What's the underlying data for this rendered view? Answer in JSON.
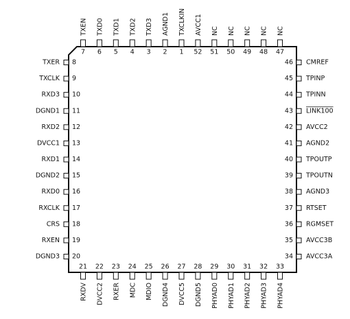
{
  "pins": {
    "top": [
      {
        "number": 7,
        "name": "TXEN"
      },
      {
        "number": 6,
        "name": "TXD0"
      },
      {
        "number": 5,
        "name": "TXD1"
      },
      {
        "number": 4,
        "name": "TXD2"
      },
      {
        "number": 3,
        "name": "TXD3"
      },
      {
        "number": 2,
        "name": "AGND1"
      },
      {
        "number": 1,
        "name": "TXCLKIN"
      },
      {
        "number": 52,
        "name": "AVCC1"
      },
      {
        "number": 51,
        "name": "NC"
      },
      {
        "number": 50,
        "name": "NC"
      },
      {
        "number": 49,
        "name": "NC"
      },
      {
        "number": 48,
        "name": "NC"
      },
      {
        "number": 47,
        "name": "NC"
      }
    ],
    "left": [
      {
        "number": 8,
        "name": "TXER"
      },
      {
        "number": 9,
        "name": "TXCLK"
      },
      {
        "number": 10,
        "name": "RXD3"
      },
      {
        "number": 11,
        "name": "DGND1"
      },
      {
        "number": 12,
        "name": "RXD2"
      },
      {
        "number": 13,
        "name": "DVCC1"
      },
      {
        "number": 14,
        "name": "RXD1"
      },
      {
        "number": 15,
        "name": "DGND2"
      },
      {
        "number": 16,
        "name": "RXD0"
      },
      {
        "number": 17,
        "name": "RXCLK"
      },
      {
        "number": 18,
        "name": "CRS"
      },
      {
        "number": 19,
        "name": "RXEN"
      },
      {
        "number": 20,
        "name": "DGND3"
      }
    ],
    "right": [
      {
        "number": 46,
        "name": "CMREF"
      },
      {
        "number": 45,
        "name": "TPINP"
      },
      {
        "number": 44,
        "name": "TPINN"
      },
      {
        "number": 43,
        "name": "LINK100"
      },
      {
        "number": 42,
        "name": "AVCC2"
      },
      {
        "number": 41,
        "name": "AGND2"
      },
      {
        "number": 40,
        "name": "TPOUTP"
      },
      {
        "number": 39,
        "name": "TPOUTN"
      },
      {
        "number": 38,
        "name": "AGND3"
      },
      {
        "number": 37,
        "name": "RTSET"
      },
      {
        "number": 36,
        "name": "RGMSET"
      },
      {
        "number": 35,
        "name": "AVCC3B"
      },
      {
        "number": 34,
        "name": "AVCC3A"
      }
    ],
    "bottom": [
      {
        "number": 21,
        "name": "RXDV"
      },
      {
        "number": 22,
        "name": "DVCC2"
      },
      {
        "number": 23,
        "name": "RXER"
      },
      {
        "number": 24,
        "name": "MDC"
      },
      {
        "number": 25,
        "name": "MDIO"
      },
      {
        "number": 26,
        "name": "DGND4"
      },
      {
        "number": 27,
        "name": "DVCC5"
      },
      {
        "number": 28,
        "name": "DGND5"
      },
      {
        "number": 29,
        "name": "PHYAD0"
      },
      {
        "number": 30,
        "name": "PHYAD1"
      },
      {
        "number": 31,
        "name": "PHYAD2"
      },
      {
        "number": 32,
        "name": "PHYAD3"
      },
      {
        "number": 33,
        "name": "PHYAD4"
      }
    ]
  }
}
